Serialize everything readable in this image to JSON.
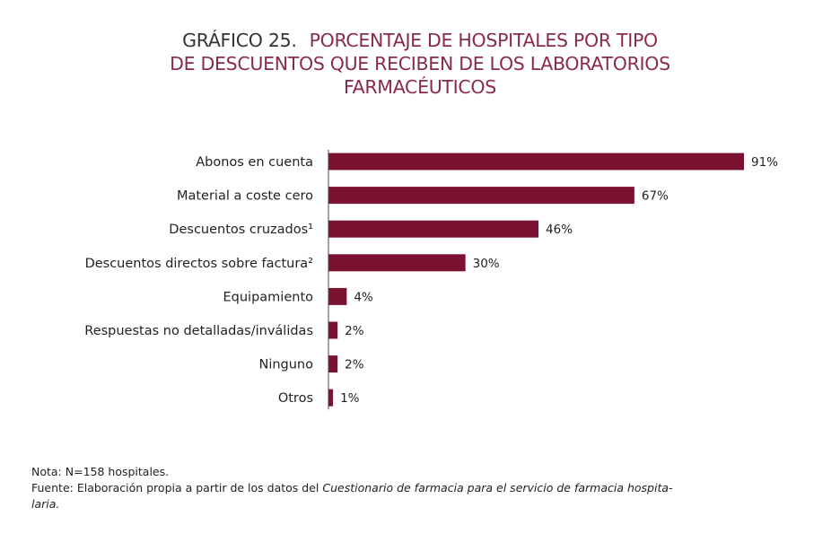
{
  "chart_data": {
    "type": "bar",
    "orientation": "horizontal",
    "title_number": "GRÁFICO 25.",
    "title_line1": "PORCENTAJE DE HOSPITALES POR TIPO",
    "title_line2": "DE DESCUENTOS QUE RECIBEN DE LOS LABORATORIOS",
    "title_line3": "FARMACÉUTICOS",
    "categories": [
      "Abonos en cuenta",
      "Material a coste cero",
      "Descuentos cruzados¹",
      "Descuentos directos sobre factura²",
      "Equipamiento",
      "Respuestas no detalladas/inválidas",
      "Ninguno",
      "Otros"
    ],
    "values": [
      91,
      67,
      46,
      30,
      4,
      2,
      2,
      1
    ],
    "value_labels": [
      "91%",
      "67%",
      "46%",
      "30%",
      "4%",
      "2%",
      "2%",
      "1%"
    ],
    "xlim": [
      0,
      100
    ],
    "grid": false,
    "bar_color": "#7b1232"
  },
  "notes": {
    "nota": "Nota: N=158 hospitales.",
    "fuente_prefix": "Fuente: Elaboración propia a partir de los datos del ",
    "fuente_italic": "Cuestionario de farmacia para el servicio de farmacia hospita-",
    "fuente_line2": "laria."
  }
}
